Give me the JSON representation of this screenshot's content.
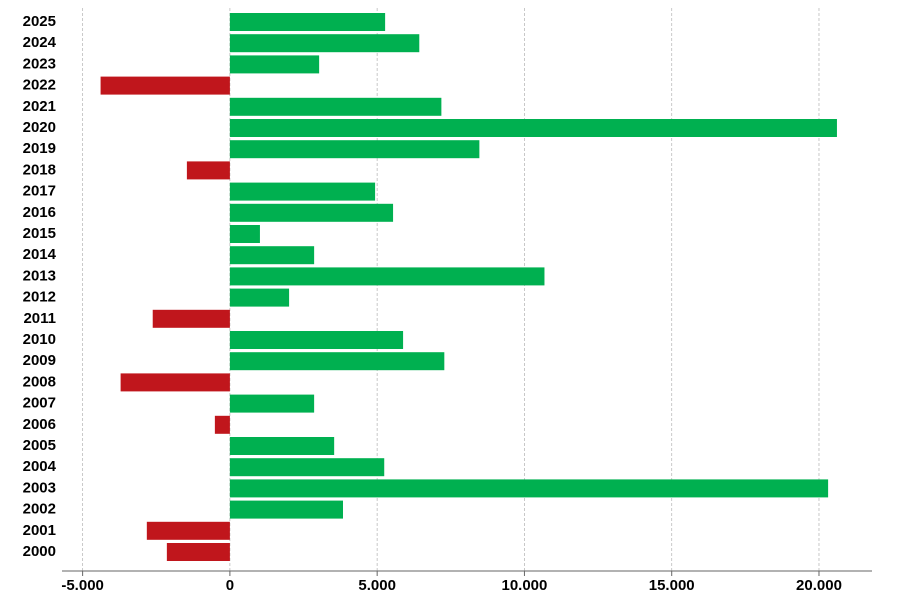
{
  "chart_data": {
    "type": "hbar",
    "categories": [
      "2000",
      "2001",
      "2002",
      "2003",
      "2004",
      "2005",
      "2006",
      "2007",
      "2008",
      "2009",
      "2010",
      "2011",
      "2012",
      "2013",
      "2014",
      "2015",
      "2016",
      "2017",
      "2018",
      "2019",
      "2020",
      "2021",
      "2022",
      "2023",
      "2024",
      "2025"
    ],
    "values": [
      -2140,
      -2820,
      3840,
      20310,
      5240,
      3540,
      -510,
      2860,
      -3710,
      7280,
      5880,
      -2620,
      2010,
      10680,
      2860,
      1020,
      5540,
      4930,
      -1460,
      8470,
      20610,
      7180,
      -4390,
      3030,
      6430,
      5270
    ],
    "positive_color": "#00b050",
    "negative_color": "#c0161c",
    "xlim": [
      -5700,
      21800
    ],
    "xticks": [
      {
        "value": -5000,
        "label": "-5.000"
      },
      0,
      {
        "value": 5000,
        "label": "5.000"
      },
      {
        "value": 10000,
        "label": "10.000"
      },
      {
        "value": 15000,
        "label": "15.000"
      },
      {
        "value": 20000,
        "label": "20.000"
      }
    ],
    "grid": true
  }
}
